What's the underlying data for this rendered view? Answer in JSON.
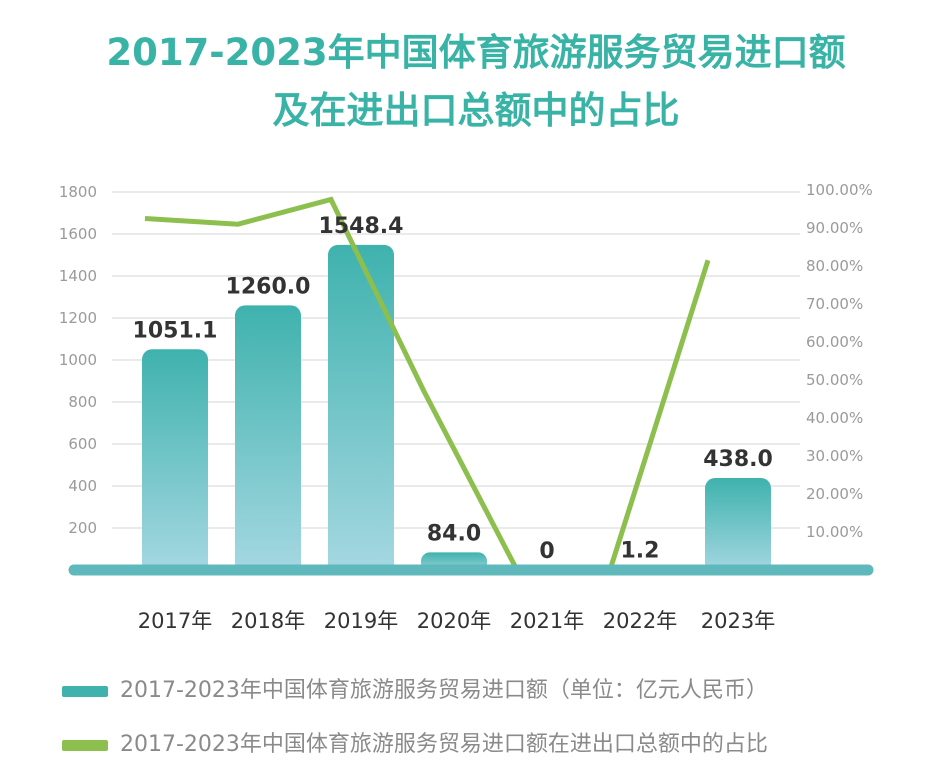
{
  "title": {
    "line1": "2017-2023年中国体育旅游服务贸易进口额",
    "line2": "及在进出口总额中的占比"
  },
  "colors": {
    "title": "#39b3a6",
    "bar_top": "#3fb2ad",
    "bar_bottom": "#a6d8e2",
    "line": "#8cbf4d",
    "baseline": "#5fb8bb",
    "grid": "#d6d6d6",
    "axis_text": "#9a9a9a",
    "category_text": "#333333",
    "label_text": "#333333"
  },
  "chart_data": {
    "type": "bar",
    "categories": [
      "2017年",
      "2018年",
      "2019年",
      "2020年",
      "2021年",
      "2022年",
      "2023年"
    ],
    "series": [
      {
        "name": "2017-2023年中国体育旅游服务贸易进口额（单位：亿元人民币）",
        "type": "bar",
        "axis": "left",
        "values": [
          1051.1,
          1260.0,
          1548.4,
          84.0,
          0,
          1.2,
          438.0
        ],
        "labels": [
          "1051.1",
          "1260.0",
          "1548.4",
          "84.0",
          "0",
          "1.2",
          "438.0"
        ]
      },
      {
        "name": "2017-2023年中国体育旅游服务贸易进口额在进出口总额中的占比",
        "type": "line",
        "axis": "right",
        "values": [
          92.5,
          91.0,
          97.5,
          47.0,
          0,
          0,
          81.5
        ]
      }
    ],
    "y_left": {
      "ticks": [
        200,
        400,
        600,
        800,
        1000,
        1200,
        1400,
        1600,
        1800
      ],
      "tick_labels": [
        "200",
        "400",
        "600",
        "800",
        "1000",
        "1200",
        "1400",
        "1600",
        "1800"
      ],
      "ylim": [
        0,
        1800
      ]
    },
    "y_right": {
      "ticks": [
        10,
        20,
        30,
        40,
        50,
        60,
        70,
        80,
        90,
        100
      ],
      "tick_labels": [
        "10.00%",
        "20.00%",
        "30.00%",
        "40.00%",
        "50.00%",
        "60.00%",
        "70.00%",
        "80.00%",
        "90.00%",
        "100.00%"
      ],
      "ylim": [
        0,
        100
      ]
    },
    "grid": true,
    "legend_position": "bottom"
  }
}
